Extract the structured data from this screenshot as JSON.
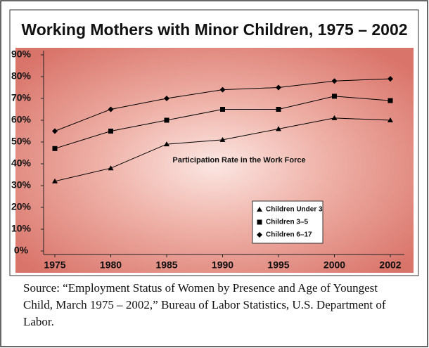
{
  "chart_data": {
    "type": "line",
    "title": "Working Mothers with Minor Children, 1975 – 2002",
    "annotation": "Participation Rate in the Work Force",
    "categories": [
      "1975",
      "1980",
      "1985",
      "1990",
      "1995",
      "2000",
      "2002"
    ],
    "series": [
      {
        "name": "Children Under 3",
        "color": "#000000",
        "marker": "triangle",
        "values": [
          32,
          38,
          49,
          51,
          56,
          61,
          60
        ]
      },
      {
        "name": "Children 3–5",
        "color": "#000000",
        "marker": "square",
        "values": [
          47,
          55,
          60,
          65,
          65,
          71,
          69
        ]
      },
      {
        "name": "Children 6–17",
        "color": "#000000",
        "marker": "diamond",
        "values": [
          55,
          65,
          70,
          74,
          75,
          78,
          79
        ]
      }
    ],
    "ylim": [
      0,
      90
    ],
    "yticks": [
      {
        "value": 0,
        "label": "0%"
      },
      {
        "value": 10,
        "label": "10%"
      },
      {
        "value": 20,
        "label": "20%"
      },
      {
        "value": 30,
        "label": "30%"
      },
      {
        "value": 40,
        "label": "40%"
      },
      {
        "value": 50,
        "label": "50%"
      },
      {
        "value": 60,
        "label": "60%"
      },
      {
        "value": 70,
        "label": "70%"
      },
      {
        "value": 80,
        "label": "80%"
      },
      {
        "value": 90,
        "label": "90%"
      }
    ],
    "source": "Source:  “Employment Status of Women by Presence and Age of Youngest Child, March 1975 – 2002,” Bureau of Labor Statistics, U.S. Department of Labor."
  }
}
